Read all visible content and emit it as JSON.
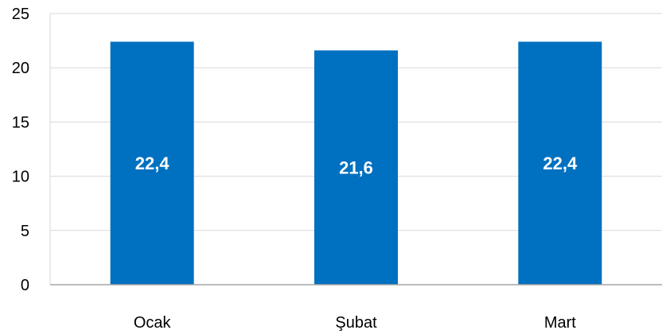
{
  "chart_data": {
    "type": "bar",
    "categories": [
      "Ocak",
      "Şubat",
      "Mart"
    ],
    "values": [
      22.4,
      21.6,
      22.4
    ],
    "data_labels": [
      "22,4",
      "21,6",
      "22,4"
    ],
    "title": "",
    "xlabel": "",
    "ylabel": "",
    "ylim": [
      0,
      25
    ],
    "yticks": [
      0,
      5,
      10,
      15,
      20,
      25
    ],
    "ytick_labels": [
      "0",
      "5",
      "10",
      "15",
      "20",
      "25"
    ],
    "grid": true,
    "legend": "none",
    "colors": {
      "bar": "#0070C0",
      "grid": "#D9D9D9",
      "axis": "#A6A6A6"
    }
  }
}
